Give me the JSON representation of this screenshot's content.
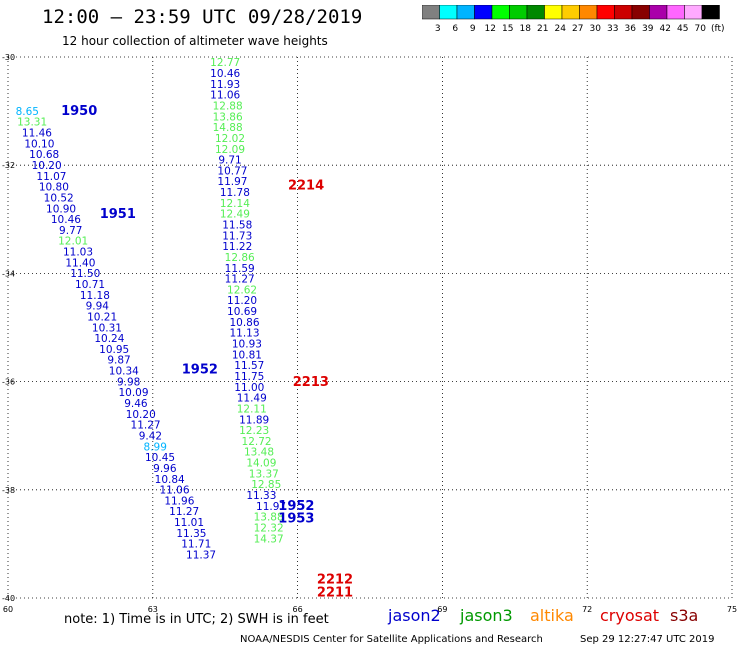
{
  "header": {
    "title": "12:00 – 23:59 UTC 09/28/2019",
    "subtitle": "12 hour collection of altimeter wave heights"
  },
  "color_scale": {
    "colors": [
      "#808080",
      "#00ffff",
      "#00b4ff",
      "#0000ff",
      "#00ff00",
      "#00cc00",
      "#008800",
      "#ffff00",
      "#ffcc00",
      "#ff8800",
      "#ff0000",
      "#cc0000",
      "#880000",
      "#aa00aa",
      "#ff66ff",
      "#ffaaff",
      "#000000"
    ],
    "labels": [
      "3",
      "6",
      "9",
      "12",
      "15",
      "18",
      "21",
      "24",
      "27",
      "30",
      "33",
      "36",
      "39",
      "42",
      "45",
      "70",
      "(ft)"
    ]
  },
  "satellites": [
    {
      "name": "jason2",
      "color": "#0000cc"
    },
    {
      "name": "jason3",
      "color": "#009900"
    },
    {
      "name": "altika",
      "color": "#ff8800"
    },
    {
      "name": "cryosat",
      "color": "#dd0000"
    },
    {
      "name": "s3a",
      "color": "#880000"
    }
  ],
  "footer": {
    "note": "note:  1) Time is in UTC;  2) SWH is in feet",
    "credit": "NOAA/NESDIS Center for Satellite Applications and Research",
    "timestamp": "Sep 29 12:27:47 UTC 2019"
  },
  "chart_data": {
    "type": "scatter",
    "title": "12:00 – 23:59 UTC 09/28/2019",
    "subtitle": "12 hour collection of altimeter wave heights",
    "xlim": [
      60,
      75
    ],
    "ylim": [
      -40,
      -30
    ],
    "x_ticks": [
      "60",
      "63",
      "66",
      "69",
      "72",
      "75"
    ],
    "y_ticks": [
      "-30",
      "-32",
      "-34",
      "-36",
      "-38",
      "-40"
    ],
    "grid": true,
    "units": "ft",
    "time_labels": [
      {
        "text": "1950",
        "x": 61.1,
        "y": -31.07,
        "color": "#0000cc"
      },
      {
        "text": "1951",
        "x": 61.9,
        "y": -32.98,
        "color": "#0000cc"
      },
      {
        "text": "1952",
        "x": 63.6,
        "y": -35.85,
        "color": "#0000cc"
      },
      {
        "text": "1952",
        "x": 65.6,
        "y": -38.37,
        "color": "#0000cc"
      },
      {
        "text": "1953",
        "x": 65.6,
        "y": -38.6,
        "color": "#0000cc"
      },
      {
        "text": "2214",
        "x": 65.8,
        "y": -32.45,
        "color": "#dd0000"
      },
      {
        "text": "2213",
        "x": 65.9,
        "y": -36.08,
        "color": "#dd0000"
      },
      {
        "text": "2212",
        "x": 66.4,
        "y": -39.73,
        "color": "#dd0000"
      },
      {
        "text": "2211",
        "x": 66.4,
        "y": -39.97,
        "color": "#dd0000"
      }
    ],
    "series": [
      {
        "name": "jason2",
        "color_note": "track A (1950-1953)",
        "points": [
          {
            "x": 60.4,
            "y": -31.07,
            "v": "8.65",
            "c": "#00b4ff"
          },
          {
            "x": 60.5,
            "y": -31.27,
            "v": "13.31",
            "c": "#55ee55"
          },
          {
            "x": 60.6,
            "y": -31.47,
            "v": "11.46",
            "c": "#0000cc"
          },
          {
            "x": 60.65,
            "y": -31.67,
            "v": "10.10",
            "c": "#0000cc"
          },
          {
            "x": 60.75,
            "y": -31.87,
            "v": "10.68",
            "c": "#0000cc"
          },
          {
            "x": 60.8,
            "y": -32.07,
            "v": "10.20",
            "c": "#0000cc"
          },
          {
            "x": 60.9,
            "y": -32.27,
            "v": "11.07",
            "c": "#0000cc"
          },
          {
            "x": 60.95,
            "y": -32.47,
            "v": "10.80",
            "c": "#0000cc"
          },
          {
            "x": 61.05,
            "y": -32.67,
            "v": "10.52",
            "c": "#0000cc"
          },
          {
            "x": 61.1,
            "y": -32.87,
            "v": "10.90",
            "c": "#0000cc"
          },
          {
            "x": 61.2,
            "y": -33.07,
            "v": "10.46",
            "c": "#0000cc"
          },
          {
            "x": 61.3,
            "y": -33.27,
            "v": "9.77",
            "c": "#0000cc"
          },
          {
            "x": 61.35,
            "y": -33.47,
            "v": "12.01",
            "c": "#55ee55"
          },
          {
            "x": 61.45,
            "y": -33.67,
            "v": "11.03",
            "c": "#0000cc"
          },
          {
            "x": 61.5,
            "y": -33.87,
            "v": "11.40",
            "c": "#0000cc"
          },
          {
            "x": 61.6,
            "y": -34.07,
            "v": "11.50",
            "c": "#0000cc"
          },
          {
            "x": 61.7,
            "y": -34.27,
            "v": "10.71",
            "c": "#0000cc"
          },
          {
            "x": 61.8,
            "y": -34.47,
            "v": "11.18",
            "c": "#0000cc"
          },
          {
            "x": 61.85,
            "y": -34.67,
            "v": "9.94",
            "c": "#0000cc"
          },
          {
            "x": 61.95,
            "y": -34.87,
            "v": "10.21",
            "c": "#0000cc"
          },
          {
            "x": 62.05,
            "y": -35.07,
            "v": "10.31",
            "c": "#0000cc"
          },
          {
            "x": 62.1,
            "y": -35.27,
            "v": "10.24",
            "c": "#0000cc"
          },
          {
            "x": 62.2,
            "y": -35.47,
            "v": "10.95",
            "c": "#0000cc"
          },
          {
            "x": 62.3,
            "y": -35.67,
            "v": "9.87",
            "c": "#0000cc"
          },
          {
            "x": 62.4,
            "y": -35.87,
            "v": "10.34",
            "c": "#0000cc"
          },
          {
            "x": 62.5,
            "y": -36.07,
            "v": "9.98",
            "c": "#0000cc"
          },
          {
            "x": 62.6,
            "y": -36.27,
            "v": "10.09",
            "c": "#0000cc"
          },
          {
            "x": 62.65,
            "y": -36.47,
            "v": "9.46",
            "c": "#0000cc"
          },
          {
            "x": 62.75,
            "y": -36.67,
            "v": "10.20",
            "c": "#0000cc"
          },
          {
            "x": 62.85,
            "y": -36.87,
            "v": "11.27",
            "c": "#0000cc"
          },
          {
            "x": 62.95,
            "y": -37.07,
            "v": "9.42",
            "c": "#0000cc"
          },
          {
            "x": 63.05,
            "y": -37.27,
            "v": "8.99",
            "c": "#00b4ff"
          },
          {
            "x": 63.15,
            "y": -37.47,
            "v": "10.45",
            "c": "#0000cc"
          },
          {
            "x": 63.25,
            "y": -37.67,
            "v": "9.96",
            "c": "#0000cc"
          },
          {
            "x": 63.35,
            "y": -37.87,
            "v": "10.84",
            "c": "#0000cc"
          },
          {
            "x": 63.45,
            "y": -38.07,
            "v": "11.06",
            "c": "#0000cc"
          },
          {
            "x": 63.55,
            "y": -38.27,
            "v": "11.96",
            "c": "#0000cc"
          },
          {
            "x": 63.65,
            "y": -38.47,
            "v": "11.27",
            "c": "#0000cc"
          },
          {
            "x": 63.75,
            "y": -38.67,
            "v": "11.01",
            "c": "#0000cc"
          },
          {
            "x": 63.8,
            "y": -38.87,
            "v": "11.35",
            "c": "#0000cc"
          },
          {
            "x": 63.9,
            "y": -39.07,
            "v": "11.71",
            "c": "#0000cc"
          },
          {
            "x": 64.0,
            "y": -39.27,
            "v": "11.37",
            "c": "#0000cc"
          }
        ]
      },
      {
        "name": "jason3",
        "color_note": "track B (2211-2214)",
        "points": [
          {
            "x": 64.5,
            "y": -30.17,
            "v": "12.77",
            "c": "#55ee55"
          },
          {
            "x": 64.5,
            "y": -30.37,
            "v": "10.46",
            "c": "#0000cc"
          },
          {
            "x": 64.5,
            "y": -30.57,
            "v": "11.93",
            "c": "#0000cc"
          },
          {
            "x": 64.5,
            "y": -30.77,
            "v": "11.06",
            "c": "#0000cc"
          },
          {
            "x": 64.55,
            "y": -30.97,
            "v": "12.88",
            "c": "#55ee55"
          },
          {
            "x": 64.55,
            "y": -31.17,
            "v": "13.86",
            "c": "#55ee55"
          },
          {
            "x": 64.55,
            "y": -31.37,
            "v": "14.88",
            "c": "#55ee55"
          },
          {
            "x": 64.6,
            "y": -31.57,
            "v": "12.02",
            "c": "#55ee55"
          },
          {
            "x": 64.6,
            "y": -31.77,
            "v": "12.09",
            "c": "#55ee55"
          },
          {
            "x": 64.6,
            "y": -31.97,
            "v": "9.71",
            "c": "#0000cc"
          },
          {
            "x": 64.65,
            "y": -32.17,
            "v": "10.77",
            "c": "#0000cc"
          },
          {
            "x": 64.65,
            "y": -32.37,
            "v": "11.97",
            "c": "#0000cc"
          },
          {
            "x": 64.7,
            "y": -32.57,
            "v": "11.78",
            "c": "#0000cc"
          },
          {
            "x": 64.7,
            "y": -32.77,
            "v": "12.14",
            "c": "#55ee55"
          },
          {
            "x": 64.7,
            "y": -32.97,
            "v": "12.49",
            "c": "#55ee55"
          },
          {
            "x": 64.75,
            "y": -33.17,
            "v": "11.58",
            "c": "#0000cc"
          },
          {
            "x": 64.75,
            "y": -33.37,
            "v": "11.73",
            "c": "#0000cc"
          },
          {
            "x": 64.75,
            "y": -33.57,
            "v": "11.22",
            "c": "#0000cc"
          },
          {
            "x": 64.8,
            "y": -33.77,
            "v": "12.86",
            "c": "#55ee55"
          },
          {
            "x": 64.8,
            "y": -33.97,
            "v": "11.59",
            "c": "#0000cc"
          },
          {
            "x": 64.8,
            "y": -34.17,
            "v": "11.27",
            "c": "#0000cc"
          },
          {
            "x": 64.85,
            "y": -34.37,
            "v": "12.62",
            "c": "#55ee55"
          },
          {
            "x": 64.85,
            "y": -34.57,
            "v": "11.20",
            "c": "#0000cc"
          },
          {
            "x": 64.85,
            "y": -34.77,
            "v": "10.69",
            "c": "#0000cc"
          },
          {
            "x": 64.9,
            "y": -34.97,
            "v": "10.86",
            "c": "#0000cc"
          },
          {
            "x": 64.9,
            "y": -35.17,
            "v": "11.13",
            "c": "#0000cc"
          },
          {
            "x": 64.95,
            "y": -35.37,
            "v": "10.93",
            "c": "#0000cc"
          },
          {
            "x": 64.95,
            "y": -35.57,
            "v": "10.81",
            "c": "#0000cc"
          },
          {
            "x": 65.0,
            "y": -35.77,
            "v": "11.57",
            "c": "#0000cc"
          },
          {
            "x": 65.0,
            "y": -35.97,
            "v": "11.75",
            "c": "#0000cc"
          },
          {
            "x": 65.0,
            "y": -36.17,
            "v": "11.00",
            "c": "#0000cc"
          },
          {
            "x": 65.05,
            "y": -36.37,
            "v": "11.49",
            "c": "#0000cc"
          },
          {
            "x": 65.05,
            "y": -36.57,
            "v": "12.11",
            "c": "#55ee55"
          },
          {
            "x": 65.1,
            "y": -36.77,
            "v": "11.89",
            "c": "#0000cc"
          },
          {
            "x": 65.1,
            "y": -36.97,
            "v": "12.23",
            "c": "#55ee55"
          },
          {
            "x": 65.15,
            "y": -37.17,
            "v": "12.72",
            "c": "#55ee55"
          },
          {
            "x": 65.2,
            "y": -37.37,
            "v": "13.48",
            "c": "#55ee55"
          },
          {
            "x": 65.25,
            "y": -37.57,
            "v": "14.09",
            "c": "#55ee55"
          },
          {
            "x": 65.3,
            "y": -37.77,
            "v": "13.37",
            "c": "#55ee55"
          },
          {
            "x": 65.35,
            "y": -37.97,
            "v": "12.85",
            "c": "#55ee55"
          },
          {
            "x": 65.25,
            "y": -38.17,
            "v": "11.33",
            "c": "#0000cc"
          },
          {
            "x": 65.45,
            "y": -38.37,
            "v": "11.97",
            "c": "#0000cc"
          },
          {
            "x": 65.4,
            "y": -38.57,
            "v": "13.88",
            "c": "#55ee55"
          },
          {
            "x": 65.4,
            "y": -38.77,
            "v": "12.32",
            "c": "#55ee55"
          },
          {
            "x": 65.4,
            "y": -38.97,
            "v": "14.37",
            "c": "#55ee55"
          }
        ]
      }
    ]
  }
}
